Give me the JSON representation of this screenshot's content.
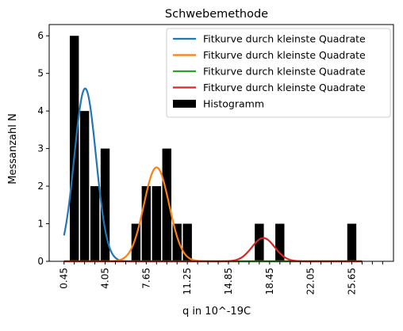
{
  "chart_data": {
    "type": "bar",
    "title": "Schwebemethode",
    "xlabel": "q in 10^-19C",
    "ylabel": "Messanzahl N",
    "xlim": [
      -0.85,
      29.3
    ],
    "ylim": [
      0,
      6.3
    ],
    "xticks": [
      0.45,
      1.35,
      2.25,
      3.15,
      4.05,
      4.95,
      5.85,
      6.75,
      7.65,
      8.55,
      9.45,
      10.35,
      11.25,
      12.15,
      13.05,
      13.95,
      14.85,
      15.75,
      16.65,
      17.55,
      18.45,
      19.35,
      20.25,
      21.15,
      22.05,
      22.95,
      23.85,
      24.75,
      25.65,
      26.55,
      27.45,
      28.35
    ],
    "xtick_labels": [
      "0.45",
      "",
      "",
      "",
      "4.05",
      "",
      "",
      "",
      "7.65",
      "",
      "",
      "",
      "11.25",
      "",
      "",
      "",
      "14.85",
      "",
      "",
      "",
      "18.45",
      "",
      "",
      "",
      "22.05",
      "",
      "",
      "",
      "25.65",
      "",
      "",
      ""
    ],
    "yticks": [
      0,
      1,
      2,
      3,
      4,
      5,
      6
    ],
    "legend_position": "top-right",
    "grid": false,
    "histogram": {
      "name": "Histogramm",
      "color": "#000000",
      "bin_width": 0.9,
      "bin_centers": [
        0.45,
        1.35,
        2.25,
        3.15,
        4.05,
        4.95,
        5.85,
        6.75,
        7.65,
        8.55,
        9.45,
        10.35,
        11.25,
        12.15,
        13.05,
        13.95,
        14.85,
        15.75,
        16.65,
        17.55,
        18.45,
        19.35,
        20.25,
        21.15,
        22.05,
        22.95,
        23.85,
        24.75,
        25.65,
        26.55
      ],
      "values": [
        0,
        6,
        4,
        2,
        3,
        0,
        0,
        1,
        2,
        2,
        3,
        1,
        1,
        0,
        0,
        0,
        0,
        0,
        0,
        1,
        0,
        1,
        0,
        0,
        0,
        0,
        0,
        0,
        1,
        0
      ]
    },
    "series": [
      {
        "name": "Fitkurve durch kleinste Quadrate",
        "color": "#1f77b4",
        "mu": 2.3,
        "sigma": 0.95,
        "amplitude": 4.6,
        "x_range": [
          0.45,
          26.55
        ]
      },
      {
        "name": "Fitkurve durch kleinste Quadrate",
        "color": "#ff7f0e",
        "mu": 8.55,
        "sigma": 1.1,
        "amplitude": 2.5,
        "x_range": [
          0.45,
          26.55
        ]
      },
      {
        "name": "Fitkurve durch kleinste Quadrate",
        "color": "#2ca02c",
        "mu": 16.0,
        "sigma": 1.0,
        "amplitude": 0.0,
        "x_range": [
          0.45,
          26.55
        ]
      },
      {
        "name": "Fitkurve durch kleinste Quadrate",
        "color": "#d62728",
        "mu": 17.9,
        "sigma": 1.0,
        "amplitude": 0.62,
        "x_range": [
          0.45,
          26.55
        ]
      }
    ]
  }
}
